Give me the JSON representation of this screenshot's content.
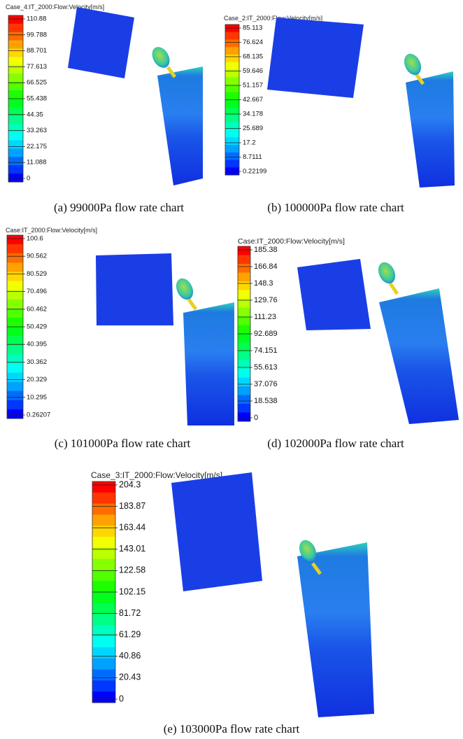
{
  "panels": [
    {
      "title": "Case_4:IT_2000:Flow:Velocity[m/s]",
      "legend": [
        "110.88",
        "99.788",
        "88.701",
        "77.613",
        "66.525",
        "55.438",
        "44.35",
        "33.263",
        "22.175",
        "11.088",
        "0"
      ],
      "caption": "(a) 99000Pa flow rate chart"
    },
    {
      "title": "Case_2:IT_2000:Flow:Velocity[m/s]",
      "legend": [
        "85.113",
        "76.624",
        "68.135",
        "59.646",
        "51.157",
        "42.667",
        "34.178",
        "25.689",
        "17.2",
        "8.7111",
        "0.22199"
      ],
      "caption": "(b) 100000Pa flow rate chart"
    },
    {
      "title": "Case:IT_2000:Flow:Velocity[m/s]",
      "legend": [
        "100.6",
        "90.562",
        "80.529",
        "70.496",
        "60.462",
        "50.429",
        "40.395",
        "30.362",
        "20.329",
        "10.295",
        "0.26207"
      ],
      "caption": "(c) 101000Pa flow rate chart"
    },
    {
      "title": "Case:IT_2000:Flow:Velocity[m/s]",
      "legend": [
        "185.38",
        "166.84",
        "148.3",
        "129.76",
        "111.23",
        "92.689",
        "74.151",
        "55.613",
        "37.076",
        "18.538",
        "0"
      ],
      "caption": "(d) 102000Pa flow rate chart"
    },
    {
      "title": "Case_3:IT_2000:Flow:Velocity[m/s]",
      "legend": [
        "204.3",
        "183.87",
        "163.44",
        "143.01",
        "122.58",
        "102.15",
        "81.72",
        "61.29",
        "40.86",
        "20.43",
        "0"
      ],
      "caption": "(e) 103000Pa flow rate chart"
    }
  ]
}
